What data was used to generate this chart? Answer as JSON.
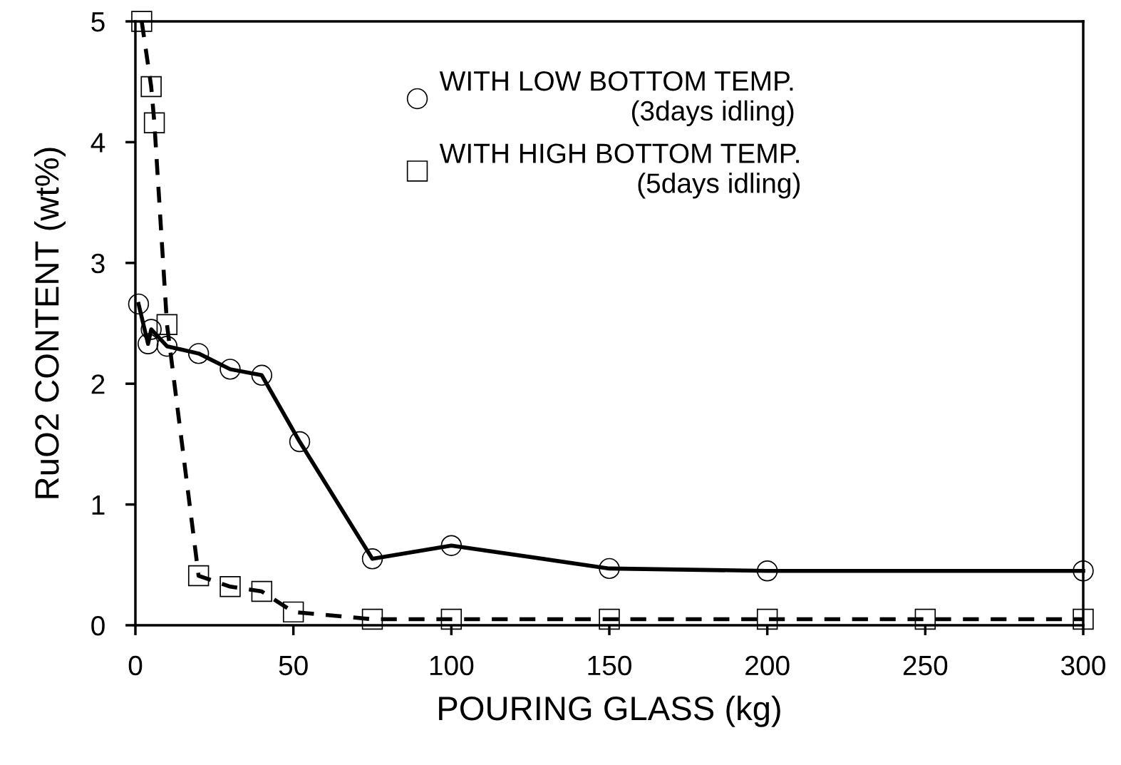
{
  "chart_data": {
    "type": "line",
    "xlabel": "POURING GLASS (kg)",
    "ylabel": "RuO2 CONTENT (wt%)",
    "xlim": [
      0,
      300
    ],
    "xticks": [
      0,
      50,
      100,
      150,
      200,
      250,
      300
    ],
    "ylim": [
      0,
      5
    ],
    "yticks": [
      0,
      1,
      2,
      3,
      4,
      5
    ],
    "legend": "top",
    "series": [
      {
        "name": "WITH LOW BOTTOM TEMP.\n(3days idling)",
        "color": "#000000",
        "marker": "circle",
        "line_style": "solid",
        "x": [
          1,
          4,
          5,
          10,
          20,
          30,
          40,
          52,
          75,
          100,
          150,
          200,
          300
        ],
        "values": [
          2.66,
          2.33,
          2.45,
          2.31,
          2.25,
          2.12,
          2.07,
          1.52,
          0.55,
          0.66,
          0.47,
          0.45,
          0.45
        ]
      },
      {
        "name": "WITH HIGH BOTTOM TEMP.\n(5days idling)",
        "color": "#000000",
        "marker": "square",
        "line_style": "dashed",
        "x": [
          2,
          5,
          6,
          10,
          20,
          30,
          40,
          50,
          75,
          100,
          150,
          200,
          250,
          300
        ],
        "values": [
          5.0,
          4.46,
          4.16,
          2.49,
          0.41,
          0.32,
          0.28,
          0.11,
          0.05,
          0.05,
          0.05,
          0.05,
          0.05,
          0.05
        ]
      }
    ]
  }
}
